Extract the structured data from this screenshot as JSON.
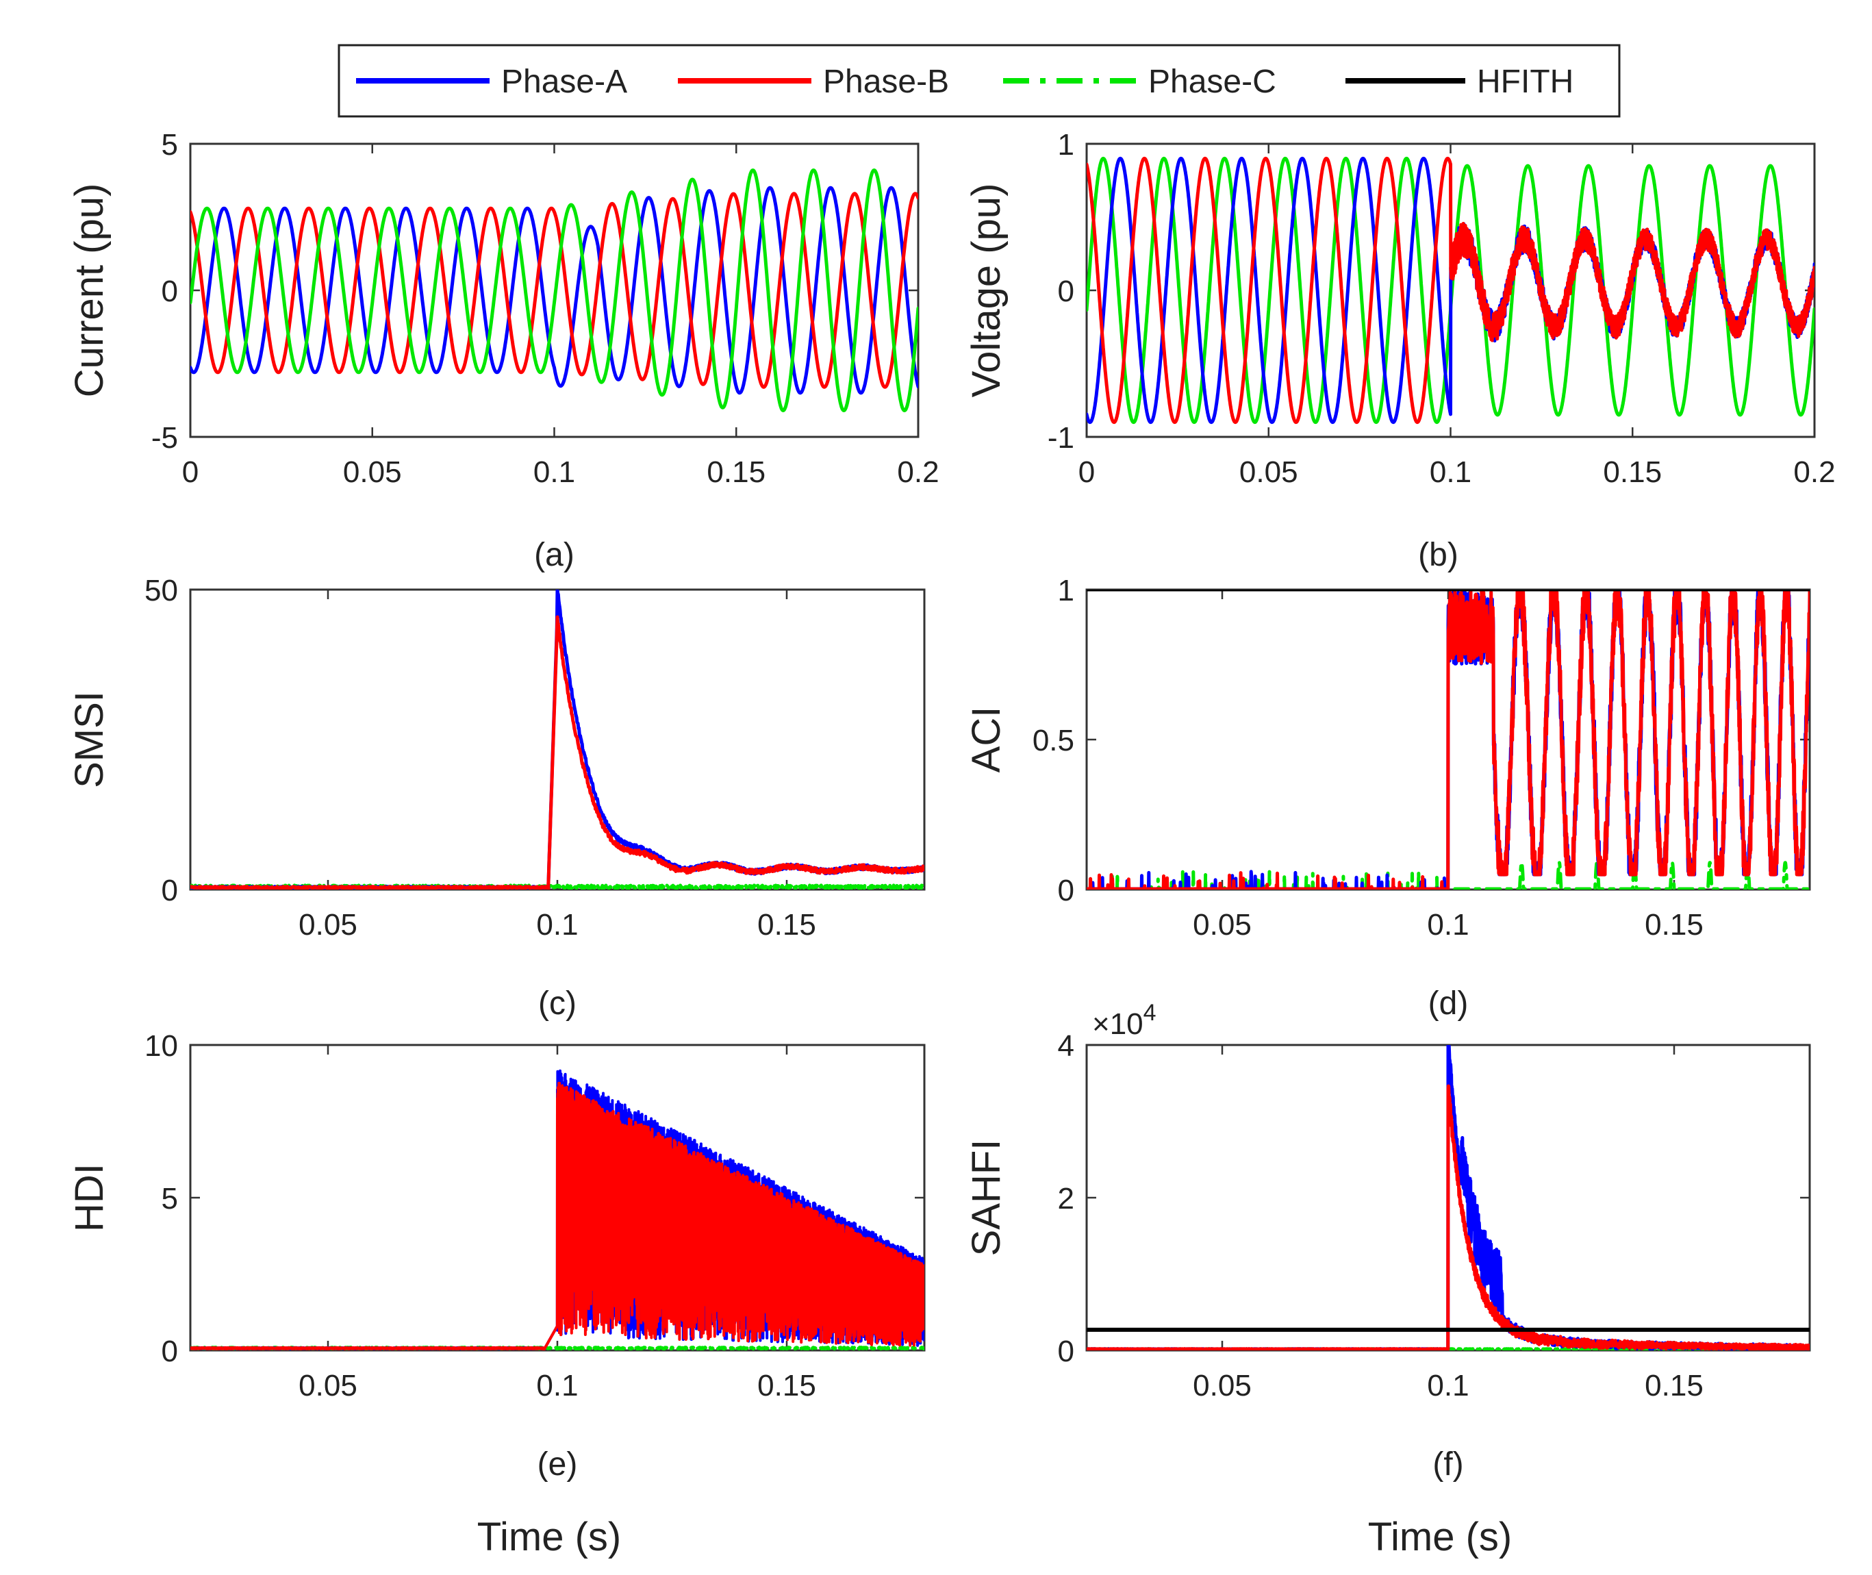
{
  "colors": {
    "phase_a": "#0000ff",
    "phase_b": "#ff0000",
    "phase_c": "#00e600",
    "hfith": "#000000"
  },
  "legend": {
    "entries": [
      "Phase-A",
      "Phase-B",
      "Phase-C",
      "HFITH"
    ]
  },
  "chart_data": [
    {
      "id": "a",
      "type": "line",
      "caption": "(a)",
      "ylabel": "Current (pu)",
      "xlabel": "",
      "xlim": [
        0,
        0.2
      ],
      "ylim": [
        -5,
        5
      ],
      "xticks": [
        "0",
        "0.05",
        "0.1",
        "0.15",
        "0.2"
      ],
      "yticks": [
        "5",
        "0",
        "-5"
      ],
      "grid": false,
      "frequency_hz": 60,
      "fault_time_s": 0.1,
      "series": [
        {
          "name": "Phase-A",
          "amplitude_pre": 2.8,
          "amplitude_post": 3.5,
          "peak_post_min": -4.3
        },
        {
          "name": "Phase-B",
          "amplitude_pre": 2.8,
          "amplitude_post": 3.3
        },
        {
          "name": "Phase-C",
          "amplitude_pre": 2.8,
          "amplitude_post": 4.1
        }
      ]
    },
    {
      "id": "b",
      "type": "line",
      "caption": "(b)",
      "ylabel": "Voltage (pu)",
      "xlabel": "",
      "xlim": [
        0,
        0.2
      ],
      "ylim": [
        -1,
        1
      ],
      "xticks": [
        "0",
        "0.05",
        "0.1",
        "0.15",
        "0.2"
      ],
      "yticks": [
        "1",
        "0",
        "-1"
      ],
      "grid": false,
      "frequency_hz": 60,
      "fault_time_s": 0.1,
      "series": [
        {
          "name": "Phase-A",
          "amplitude_pre": 0.9,
          "offset_post": 0.05,
          "amplitude_post": 0.3
        },
        {
          "name": "Phase-B",
          "amplitude_pre": 0.9,
          "offset_post": 0.05,
          "amplitude_post": 0.3
        },
        {
          "name": "Phase-C",
          "amplitude_pre": 0.9,
          "amplitude_post": 0.85
        }
      ]
    },
    {
      "id": "c",
      "type": "line",
      "caption": "(c)",
      "ylabel": "SMSI",
      "xlabel": "",
      "xlim": [
        0.02,
        0.18
      ],
      "ylim": [
        0,
        50
      ],
      "xticks": [
        "0.05",
        "0.1",
        "0.15"
      ],
      "yticks": [
        "50",
        "0"
      ],
      "grid": false,
      "fault_time_s": 0.1,
      "series": [
        {
          "name": "Phase-A",
          "peak": 46,
          "settle": 3
        },
        {
          "name": "Phase-B",
          "peak": 45,
          "settle": 3
        },
        {
          "name": "Phase-C",
          "peak": 0.5,
          "settle": 0.3
        }
      ]
    },
    {
      "id": "d",
      "type": "line",
      "caption": "(d)",
      "ylabel": "ACI",
      "xlabel": "",
      "xlim": [
        0.02,
        0.18
      ],
      "ylim": [
        0,
        1
      ],
      "xticks": [
        "0.05",
        "0.1",
        "0.15"
      ],
      "yticks": [
        "1",
        "0.5",
        "0"
      ],
      "grid": false,
      "fault_time_s": 0.1,
      "threshold": 1,
      "series": [
        {
          "name": "Phase-A",
          "post_fault_range": [
            0.05,
            1
          ]
        },
        {
          "name": "Phase-B",
          "post_fault_range": [
            0.05,
            1
          ]
        },
        {
          "name": "Phase-C",
          "post_fault_range": [
            0,
            0.1
          ]
        },
        {
          "name": "HFITH",
          "value": 1
        }
      ]
    },
    {
      "id": "e",
      "type": "line",
      "caption": "(e)",
      "ylabel": "HDI",
      "xlabel": "Time (s)",
      "xlim": [
        0.02,
        0.18
      ],
      "ylim": [
        0,
        10
      ],
      "xticks": [
        "0.05",
        "0.1",
        "0.15"
      ],
      "yticks": [
        "10",
        "5",
        "0"
      ],
      "grid": false,
      "fault_time_s": 0.1,
      "series": [
        {
          "name": "Phase-A",
          "peak": 9.2,
          "end_value": 3.0
        },
        {
          "name": "Phase-B",
          "peak": 8.8,
          "end_value": 2.8
        },
        {
          "name": "Phase-C",
          "peak": 0.1,
          "end_value": 0.05
        }
      ]
    },
    {
      "id": "f",
      "type": "line",
      "caption": "(f)",
      "ylabel": "SAHFI",
      "xlabel": "Time (s)",
      "exponent_label": "×10",
      "exponent_power": "4",
      "xlim": [
        0.02,
        0.18
      ],
      "ylim": [
        0,
        40000
      ],
      "xticks": [
        "0.05",
        "0.1",
        "0.15"
      ],
      "yticks": [
        "4",
        "2",
        "0"
      ],
      "grid": false,
      "fault_time_s": 0.1,
      "threshold": 2700,
      "series": [
        {
          "name": "Phase-A",
          "peak": 39000
        },
        {
          "name": "Phase-B",
          "peak": 33000
        },
        {
          "name": "Phase-C",
          "peak": 200
        },
        {
          "name": "HFITH",
          "value": 2700
        }
      ]
    }
  ]
}
